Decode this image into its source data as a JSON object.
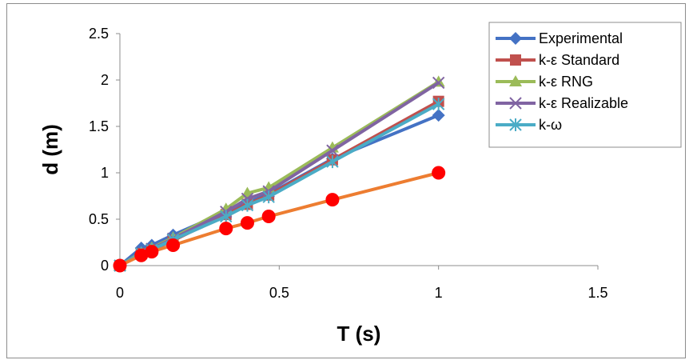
{
  "chart_data": {
    "type": "line",
    "title": "",
    "xlabel": "T (s)",
    "ylabel": "d (m)",
    "xlim": [
      0,
      1.5
    ],
    "ylim": [
      0,
      2.5
    ],
    "xticks": [
      "0",
      "0.5",
      "1",
      "1.5"
    ],
    "yticks": [
      "0",
      "0.5",
      "1",
      "1.5",
      "2",
      "2.5"
    ],
    "grid": false,
    "legend_position": "top-right",
    "series": [
      {
        "name": "Experimental",
        "color": "#4472C4",
        "marker": "diamond",
        "x": [
          0,
          0.067,
          0.1,
          0.167,
          0.333,
          0.4,
          0.467,
          0.667,
          1.0
        ],
        "y": [
          0,
          0.19,
          0.22,
          0.33,
          0.58,
          0.68,
          0.77,
          1.15,
          1.62
        ]
      },
      {
        "name": "k-ε Standard",
        "color": "#C0504D",
        "marker": "square",
        "x": [
          0,
          0.067,
          0.1,
          0.167,
          0.333,
          0.4,
          0.467,
          0.667,
          1.0
        ],
        "y": [
          0,
          0.13,
          0.17,
          0.27,
          0.55,
          0.66,
          0.76,
          1.14,
          1.77
        ]
      },
      {
        "name": "k-ε RNG",
        "color": "#9BBB59",
        "marker": "triangle",
        "x": [
          0,
          0.067,
          0.1,
          0.167,
          0.333,
          0.4,
          0.467,
          0.667,
          1.0
        ],
        "y": [
          0,
          0.14,
          0.19,
          0.3,
          0.61,
          0.78,
          0.84,
          1.27,
          1.98
        ]
      },
      {
        "name": "k-ε Realizable",
        "color": "#8064A2",
        "marker": "x",
        "x": [
          0,
          0.067,
          0.1,
          0.167,
          0.333,
          0.4,
          0.467,
          0.667,
          1.0
        ],
        "y": [
          0,
          0.13,
          0.18,
          0.29,
          0.58,
          0.72,
          0.8,
          1.24,
          1.97
        ]
      },
      {
        "name": "k-ω",
        "color": "#4BACC6",
        "marker": "star",
        "x": [
          0,
          0.067,
          0.1,
          0.167,
          0.333,
          0.4,
          0.467,
          0.667,
          1.0
        ],
        "y": [
          0,
          0.13,
          0.17,
          0.28,
          0.53,
          0.65,
          0.74,
          1.12,
          1.74
        ]
      },
      {
        "name": "",
        "color": "#ED7D31",
        "marker": "circle",
        "marker_fill": "#FF0000",
        "x": [
          0,
          0.067,
          0.1,
          0.167,
          0.333,
          0.4,
          0.467,
          0.667,
          1.0
        ],
        "y": [
          0,
          0.11,
          0.15,
          0.22,
          0.4,
          0.46,
          0.53,
          0.71,
          1.0
        ]
      }
    ]
  }
}
